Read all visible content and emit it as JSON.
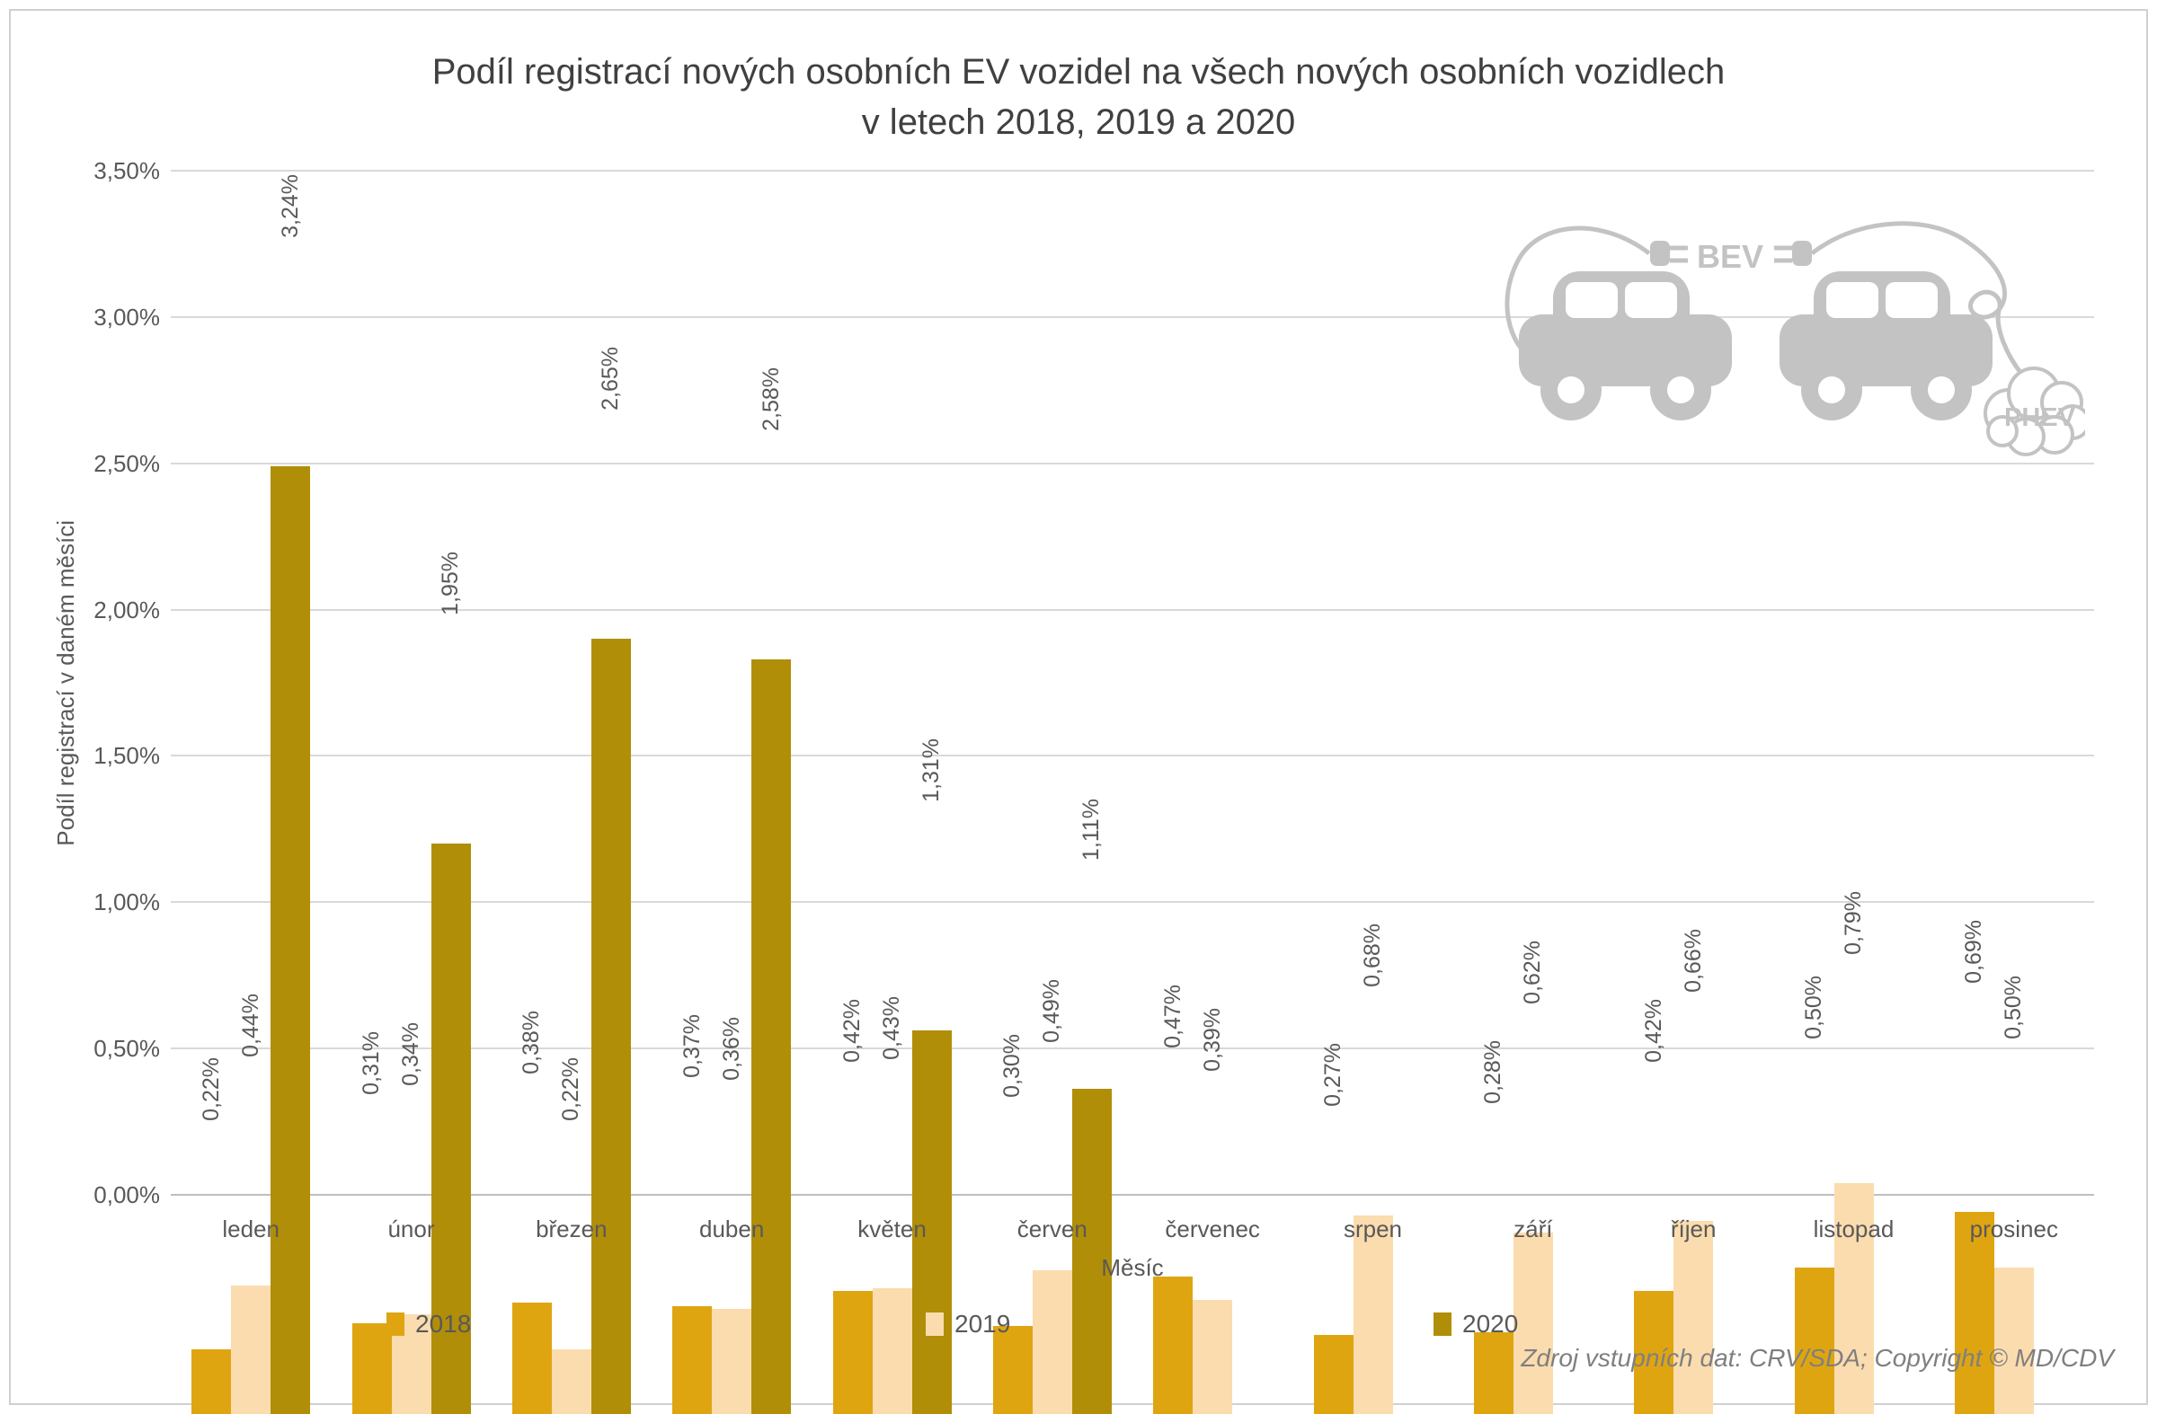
{
  "title": {
    "line1": "Podíl registrací nových osobních EV vozidel na všech nových osobních vozidlech",
    "line2": "v letech 2018, 2019 a 2020"
  },
  "chart_data": {
    "type": "bar",
    "title": "Podíl registrací nových osobních EV vozidel na všech nových osobních vozidlech v letech 2018, 2019 a 2020",
    "xlabel": "Měsíc",
    "ylabel": "Podíl registrací v daném měsíci",
    "ylim": [
      0,
      3.5
    ],
    "grid": true,
    "legend_position": "bottom-left",
    "y_ticks": [
      "0,00%",
      "0,50%",
      "1,00%",
      "1,50%",
      "2,00%",
      "2,50%",
      "3,00%",
      "3,50%"
    ],
    "categories": [
      "leden",
      "únor",
      "březen",
      "duben",
      "květen",
      "červen",
      "červenec",
      "srpen",
      "září",
      "říjen",
      "listopad",
      "prosinec"
    ],
    "series": [
      {
        "name": "2018",
        "color": "#dfa511",
        "values": [
          0.22,
          0.31,
          0.38,
          0.37,
          0.42,
          0.3,
          0.47,
          0.27,
          0.28,
          0.42,
          0.5,
          0.69
        ],
        "labels": [
          "0,22%",
          "0,31%",
          "0,38%",
          "0,37%",
          "0,42%",
          "0,30%",
          "0,47%",
          "0,27%",
          "0,28%",
          "0,42%",
          "0,50%",
          "0,69%"
        ]
      },
      {
        "name": "2019",
        "color": "#fbdcae",
        "values": [
          0.44,
          0.34,
          0.22,
          0.36,
          0.43,
          0.49,
          0.39,
          0.68,
          0.62,
          0.66,
          0.79,
          0.5
        ],
        "labels": [
          "0,44%",
          "0,34%",
          "0,22%",
          "0,36%",
          "0,43%",
          "0,49%",
          "0,39%",
          "0,68%",
          "0,62%",
          "0,66%",
          "0,79%",
          "0,50%"
        ]
      },
      {
        "name": "2020",
        "color": "#b18e08",
        "values": [
          3.24,
          1.95,
          2.65,
          2.58,
          1.31,
          1.11,
          null,
          null,
          null,
          null,
          null,
          null
        ],
        "labels": [
          "3,24%",
          "1,95%",
          "2,65%",
          "2,58%",
          "1,31%",
          "1,11%",
          null,
          null,
          null,
          null,
          null,
          null
        ]
      }
    ]
  },
  "decoration": {
    "bev_label": "BEV",
    "phev_label": "PHEV",
    "car_color": "#c3c3c3"
  },
  "source_note": "Zdroj vstupních dat: CRV/SDA; Copyright © MD/CDV"
}
